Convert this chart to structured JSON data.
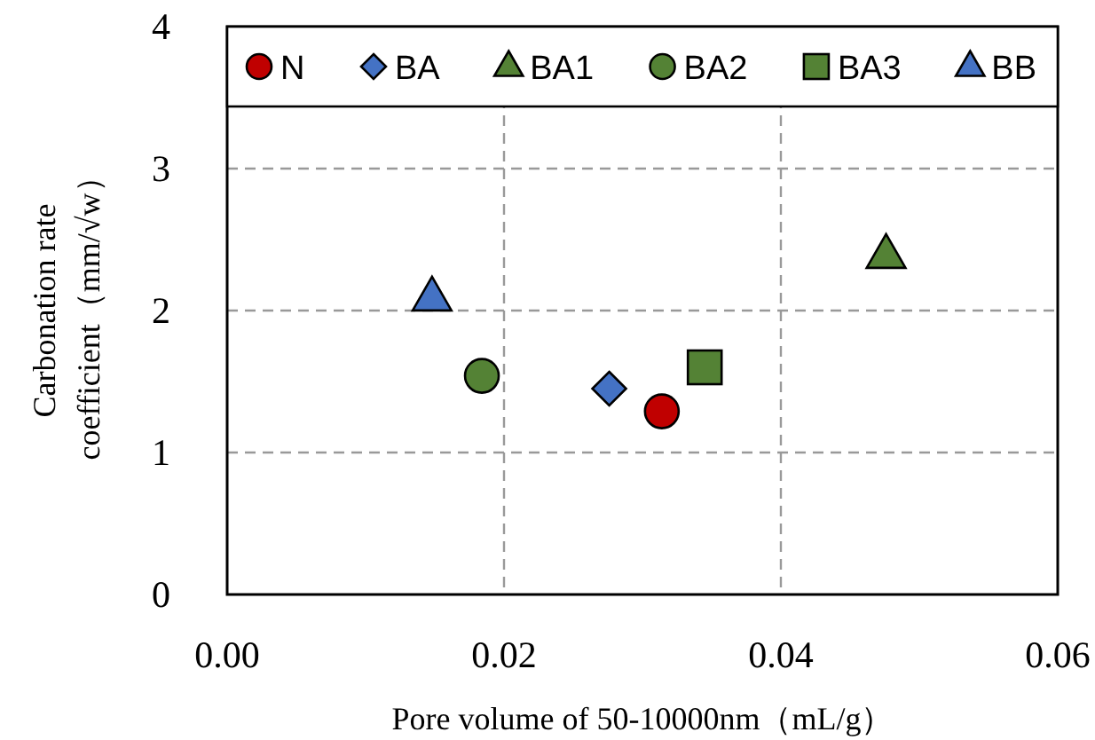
{
  "chart_data": {
    "type": "scatter",
    "xlabel": "Pore volume of 50-10000nm（mL/g）",
    "ylabel": "Carbonation rate coefficient（mm/√w）",
    "xlim": [
      0,
      0.06
    ],
    "xticks": [
      {
        "value": 0,
        "label": "0.00"
      },
      {
        "value": 0.02,
        "label": "0.02"
      },
      {
        "value": 0.04,
        "label": "0.04"
      },
      {
        "value": 0.06,
        "label": "0.06"
      }
    ],
    "ylim": [
      0,
      4
    ],
    "yticks": [
      0,
      1,
      2,
      3,
      4
    ],
    "grid": true,
    "legend": "top",
    "series": [
      {
        "name": "N",
        "color": "#c00000",
        "marker": "circle",
        "x": [
          0.0314
        ],
        "values": [
          1.29
        ]
      },
      {
        "name": "BA",
        "color": "#4472c4",
        "marker": "diamond",
        "x": [
          0.0276
        ],
        "values": [
          1.45
        ]
      },
      {
        "name": "BA1",
        "color": "#548235",
        "marker": "triangle",
        "x": [
          0.0476
        ],
        "values": [
          2.39
        ]
      },
      {
        "name": "BA2",
        "color": "#548235",
        "marker": "circle",
        "x": [
          0.0184
        ],
        "values": [
          1.54
        ]
      },
      {
        "name": "BA3",
        "color": "#548235",
        "marker": "square",
        "x": [
          0.0345
        ],
        "values": [
          1.6
        ]
      },
      {
        "name": "BB",
        "color": "#4472c4",
        "marker": "triangle",
        "x": [
          0.0148
        ],
        "values": [
          2.09
        ]
      }
    ]
  }
}
